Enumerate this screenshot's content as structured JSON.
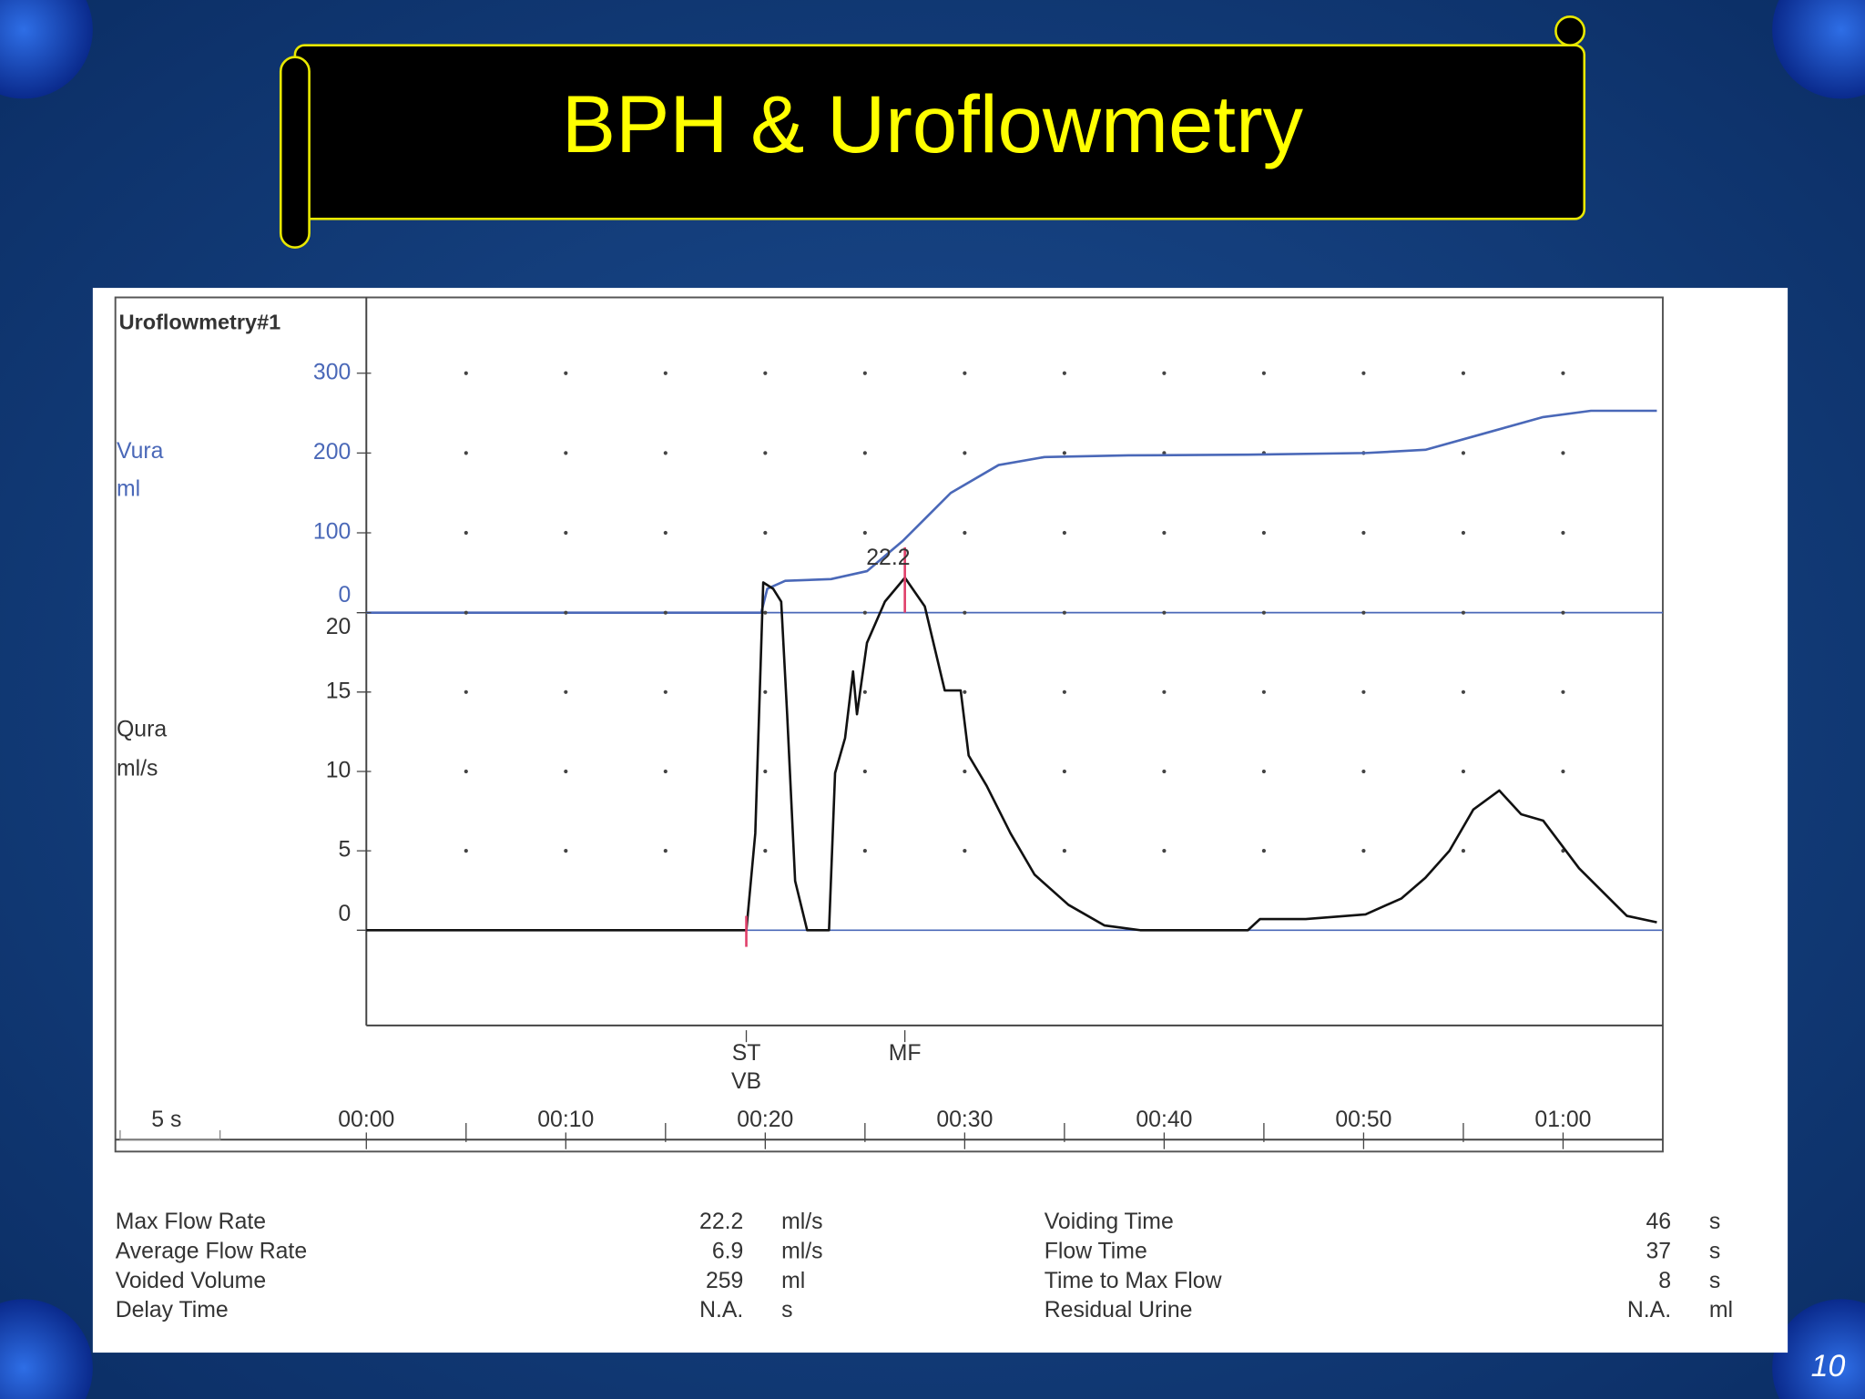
{
  "slide": {
    "title": "BPH & Uroflowmetry",
    "page_number": "10"
  },
  "chart_data": [
    {
      "type": "line",
      "title": "Uroflowmetry#1",
      "ylabel": "Vura",
      "yunit": "ml",
      "color": "#4a68b8",
      "x": [
        0,
        19.8,
        20.1,
        21,
        23.3,
        25.1,
        26.9,
        29.3,
        31.7,
        34,
        38.2,
        44.2,
        50.1,
        53.1,
        56.1,
        59,
        61.4,
        64.7
      ],
      "values": [
        0,
        0,
        30,
        40,
        42,
        52,
        90,
        150,
        185,
        195,
        197,
        198,
        200,
        204,
        225,
        245,
        253,
        253
      ],
      "ylim": [
        0,
        395
      ],
      "yticks": [
        0,
        100,
        200,
        300
      ],
      "grid": "dots"
    },
    {
      "type": "line",
      "ylabel": "Qura",
      "yunit": "ml/s",
      "color": "#111111",
      "x": [
        0,
        19.05,
        19.5,
        19.9,
        20.4,
        20.8,
        21.1,
        21.5,
        22.1,
        23.2,
        23.5,
        24.0,
        24.4,
        24.6,
        25.1,
        26,
        27,
        28,
        29,
        29.8,
        30.2,
        31.1,
        32.3,
        33.5,
        35.2,
        37,
        38.8,
        44.2,
        44.8,
        47.1,
        50.1,
        51.9,
        53.1,
        54.3,
        55.5,
        56.8,
        57.9,
        59,
        60.8,
        63.2,
        64.7
      ],
      "values": [
        0,
        0,
        6.1,
        21.9,
        21.5,
        20.7,
        13.6,
        3.1,
        0,
        0,
        9.9,
        12.1,
        16.3,
        13.6,
        18.1,
        20.7,
        22.2,
        20.4,
        15.1,
        15.1,
        11,
        9.1,
        6.1,
        3.5,
        1.6,
        0.3,
        0,
        0,
        0.7,
        0.7,
        1,
        2,
        3.3,
        5,
        7.6,
        8.8,
        7.3,
        6.9,
        3.9,
        0.9,
        0.5
      ],
      "ylim": [
        -6,
        20
      ],
      "yticks": [
        0,
        5,
        10,
        15,
        20
      ],
      "grid": "dots",
      "xlim": [
        0,
        65
      ],
      "xticks": [
        {
          "value": 0,
          "label": "00:00"
        },
        {
          "value": 10,
          "label": "00:10"
        },
        {
          "value": 20,
          "label": "00:20"
        },
        {
          "value": 30,
          "label": "00:30"
        },
        {
          "value": 40,
          "label": "00:40"
        },
        {
          "value": 50,
          "label": "00:50"
        },
        {
          "value": 60,
          "label": "01:00"
        }
      ],
      "scale_label": "5 s",
      "markers": [
        {
          "label": "ST",
          "sublabel": "VB",
          "x": 19.05
        },
        {
          "label": "MF",
          "x": 27
        }
      ],
      "annotations": [
        {
          "text": "22.2",
          "x": 27,
          "y": 22.2
        }
      ]
    }
  ],
  "results": {
    "left": [
      [
        "Max Flow Rate",
        "22.2",
        "ml/s"
      ],
      [
        "Average Flow Rate",
        "6.9",
        "ml/s"
      ],
      [
        "Voided Volume",
        "259",
        "ml"
      ],
      [
        "Delay Time",
        "N.A.",
        "s"
      ]
    ],
    "right": [
      [
        "Voiding Time",
        "46",
        "s"
      ],
      [
        "Flow Time",
        "37",
        "s"
      ],
      [
        "Time to Max Flow",
        "8",
        "s"
      ],
      [
        "Residual Urine",
        "N.A.",
        "ml"
      ]
    ]
  }
}
